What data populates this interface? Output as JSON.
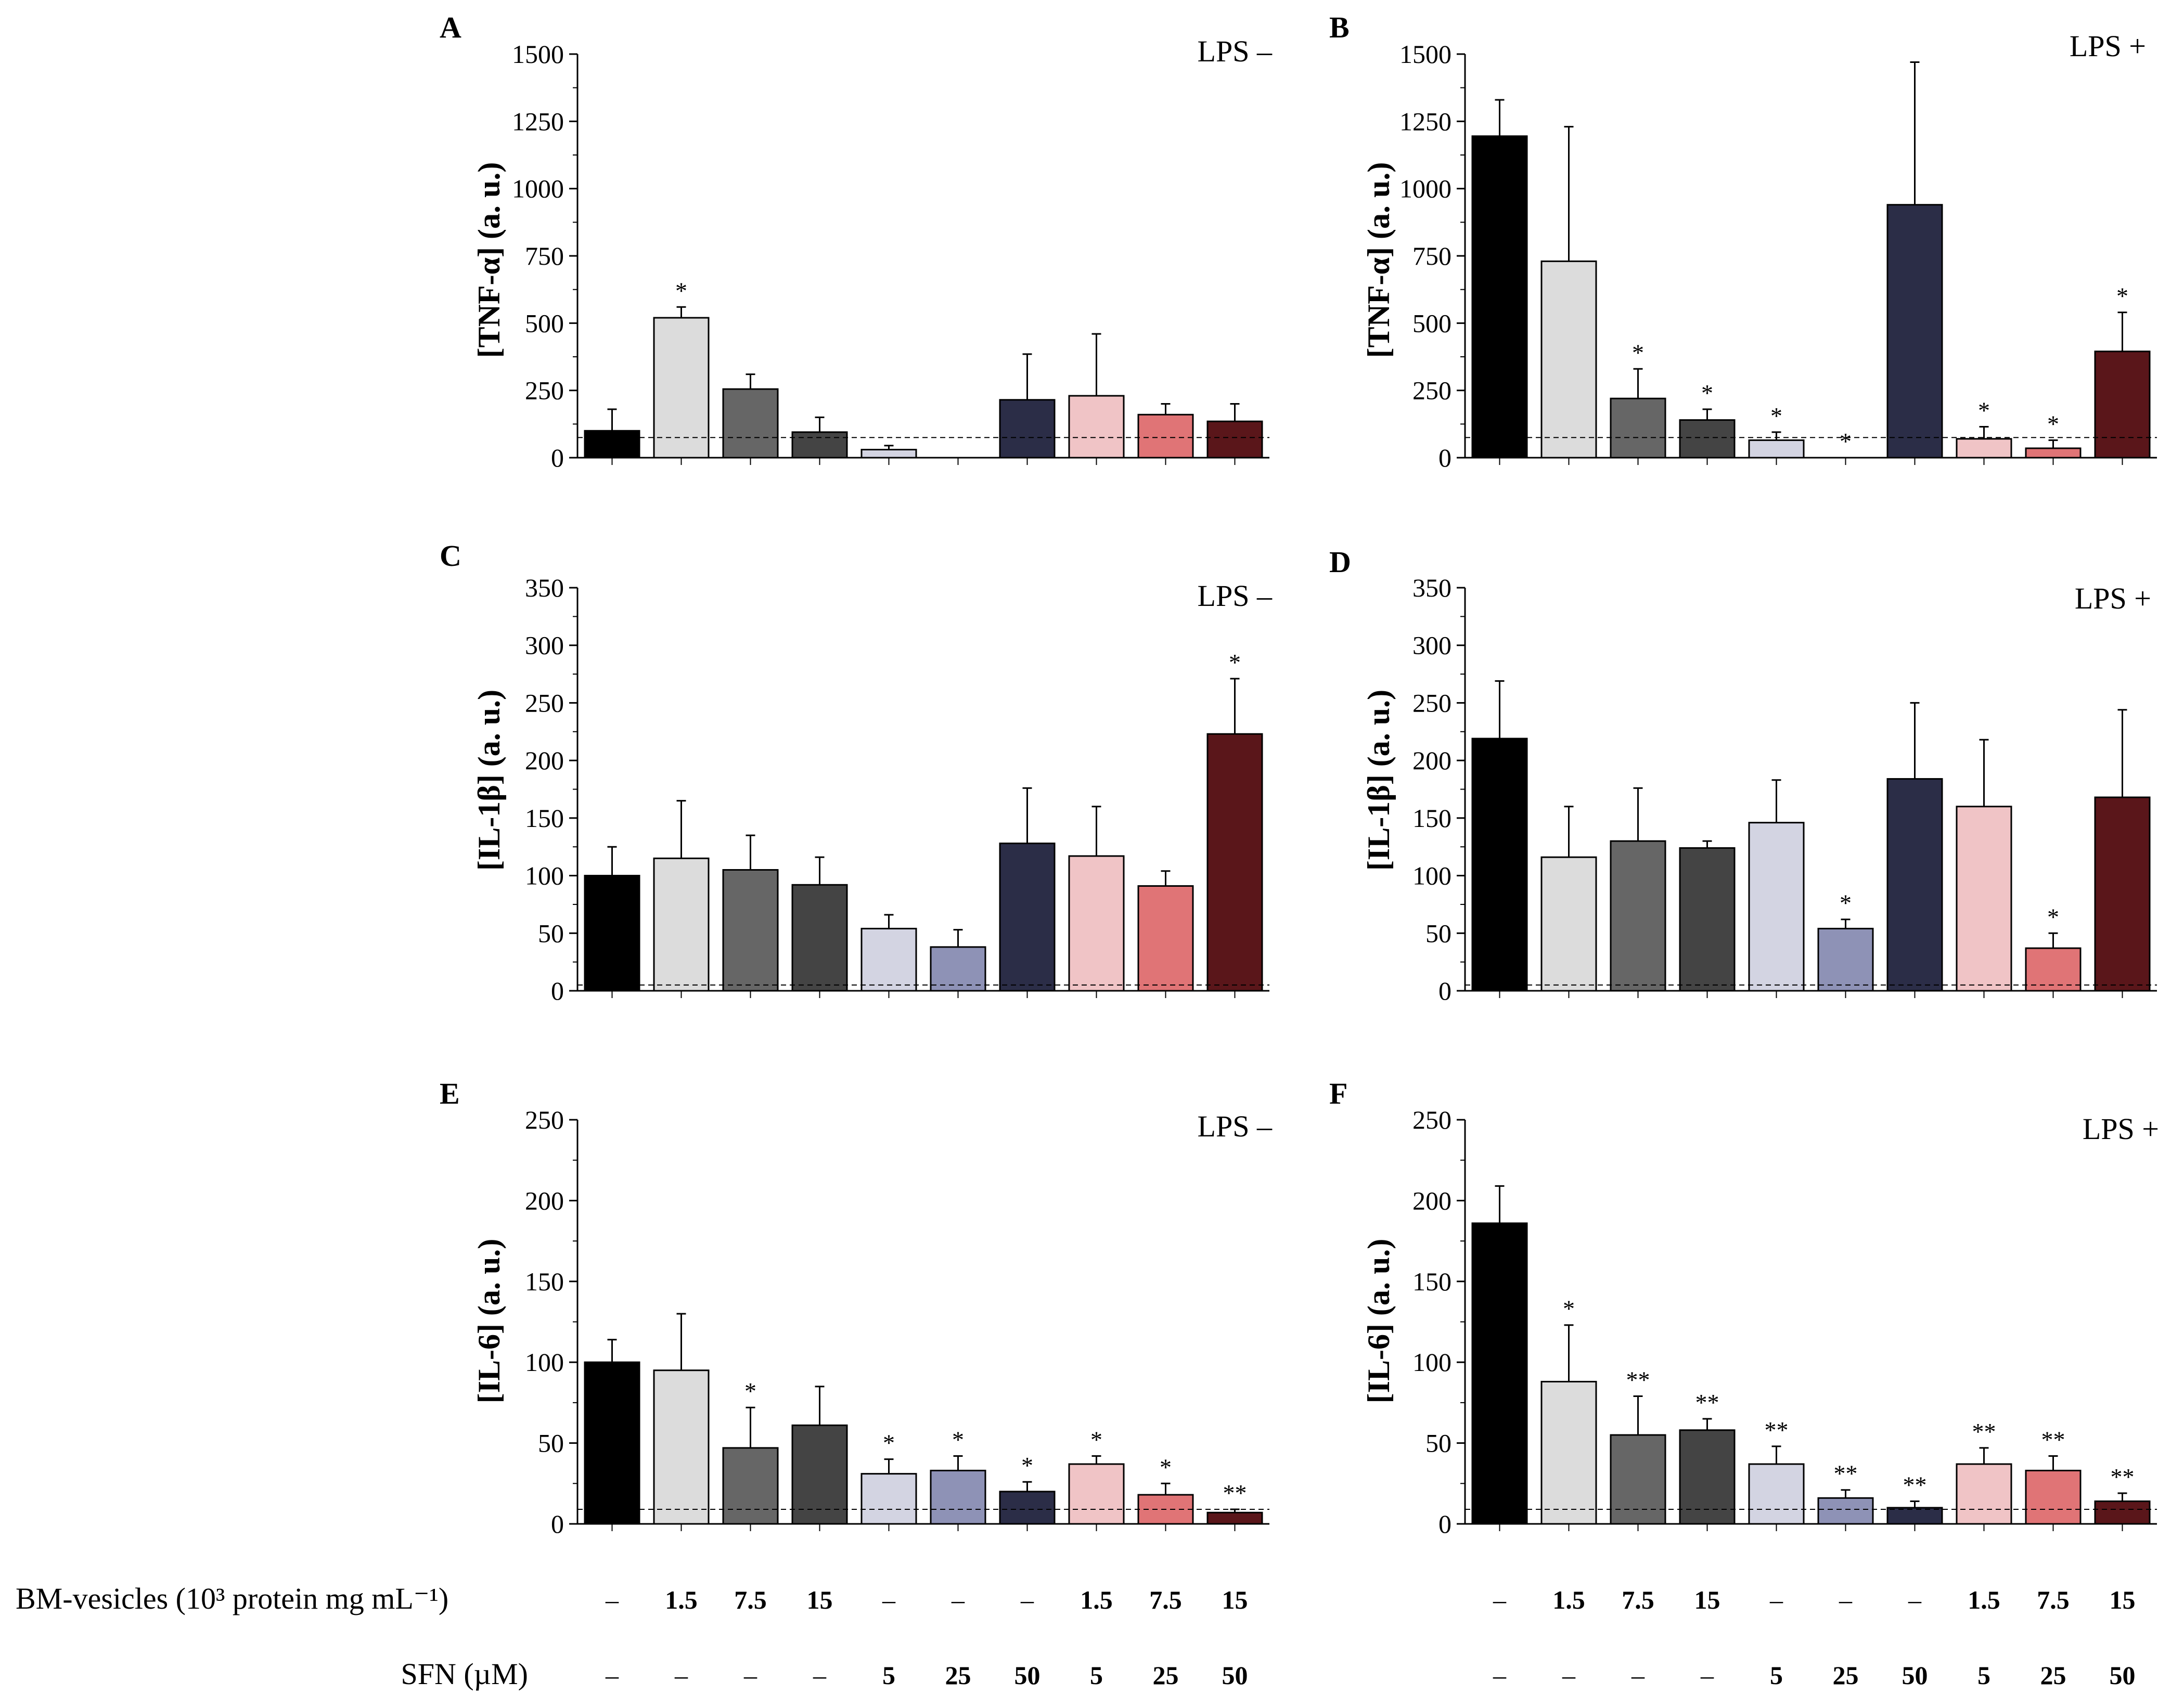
{
  "colors": [
    "#000000",
    "#dcdcdc",
    "#666666",
    "#444444",
    "#d3d4e2",
    "#8e92b6",
    "#2b2d47",
    "#f0c4c6",
    "#e07476",
    "#5a161a"
  ],
  "legend_rows": [
    {
      "label": "BM-vesicles (10³ protein mg mL⁻¹)",
      "values": [
        "–",
        "1.5",
        "7.5",
        "15",
        "–",
        "–",
        "–",
        "1.5",
        "7.5",
        "15"
      ]
    },
    {
      "label": "SFN (µM)",
      "values": [
        "–",
        "–",
        "–",
        "–",
        "5",
        "25",
        "50",
        "5",
        "25",
        "50"
      ]
    }
  ],
  "chart_data": [
    {
      "type": "bar",
      "panel": "A",
      "condition": "LPS  –",
      "ylabel": "[TNF-α]  (a. u.)",
      "ylim": [
        0,
        1500
      ],
      "yticks": [
        0,
        250,
        500,
        750,
        1000,
        1250,
        1500
      ],
      "baseline": 75,
      "values": [
        100,
        520,
        255,
        95,
        30,
        0,
        215,
        230,
        160,
        135
      ],
      "errors": [
        80,
        40,
        55,
        55,
        15,
        0,
        170,
        230,
        40,
        65
      ],
      "stars": [
        "",
        "*",
        "",
        "",
        "",
        "",
        "",
        "",
        "",
        ""
      ]
    },
    {
      "type": "bar",
      "panel": "B",
      "condition": "LPS +",
      "ylabel": "[TNF-α]  (a. u.)",
      "ylim": [
        0,
        1500
      ],
      "yticks": [
        0,
        250,
        500,
        750,
        1000,
        1250,
        1500
      ],
      "baseline": 75,
      "values": [
        1195,
        730,
        220,
        140,
        65,
        0,
        940,
        70,
        35,
        395
      ],
      "errors": [
        135,
        500,
        110,
        40,
        30,
        0,
        530,
        45,
        30,
        145
      ],
      "stars": [
        "",
        "",
        "*",
        "*",
        "*",
        "*",
        "",
        "*",
        "*",
        "*"
      ]
    },
    {
      "type": "bar",
      "panel": "C",
      "condition": "LPS  –",
      "ylabel": "[IL-1β] (a. u.)",
      "ylim": [
        0,
        350
      ],
      "yticks": [
        0,
        50,
        100,
        150,
        200,
        250,
        300,
        350
      ],
      "baseline": 5,
      "values": [
        100,
        115,
        105,
        92,
        54,
        38,
        128,
        117,
        91,
        223
      ],
      "errors": [
        25,
        50,
        30,
        24,
        12,
        15,
        48,
        43,
        13,
        48
      ],
      "stars": [
        "",
        "",
        "",
        "",
        "",
        "",
        "",
        "",
        "",
        "*"
      ]
    },
    {
      "type": "bar",
      "panel": "D",
      "condition": "LPS +",
      "ylabel": "[IL-1β] (a. u.)",
      "ylim": [
        0,
        350
      ],
      "yticks": [
        0,
        50,
        100,
        150,
        200,
        250,
        300,
        350
      ],
      "baseline": 5,
      "values": [
        219,
        116,
        130,
        124,
        146,
        54,
        184,
        160,
        37,
        168
      ],
      "errors": [
        50,
        44,
        46,
        6,
        37,
        8,
        66,
        58,
        13,
        76
      ],
      "stars": [
        "",
        "",
        "",
        "",
        "",
        "*",
        "",
        "",
        "*",
        ""
      ]
    },
    {
      "type": "bar",
      "panel": "E",
      "condition": "LPS  –",
      "ylabel": "[IL-6] (a. u.)",
      "ylim": [
        0,
        250
      ],
      "yticks": [
        0,
        50,
        100,
        150,
        200,
        250
      ],
      "baseline": 9,
      "values": [
        100,
        95,
        47,
        61,
        31,
        33,
        20,
        37,
        18,
        7
      ],
      "errors": [
        14,
        35,
        25,
        24,
        9,
        9,
        6,
        5,
        7,
        2
      ],
      "stars": [
        "",
        "",
        "*",
        "",
        "*",
        "*",
        "*",
        "*",
        "*",
        "**"
      ]
    },
    {
      "type": "bar",
      "panel": "F",
      "condition": "LPS +",
      "ylabel": "[IL-6] (a. u.)",
      "ylim": [
        0,
        250
      ],
      "yticks": [
        0,
        50,
        100,
        150,
        200,
        250
      ],
      "baseline": 9,
      "values": [
        186,
        88,
        55,
        58,
        37,
        16,
        10,
        37,
        33,
        14
      ],
      "errors": [
        23,
        35,
        24,
        7,
        11,
        5,
        4,
        10,
        9,
        5
      ],
      "stars": [
        "",
        "*",
        "**",
        "**",
        "**",
        "**",
        "**",
        "**",
        "**",
        "**"
      ]
    }
  ]
}
